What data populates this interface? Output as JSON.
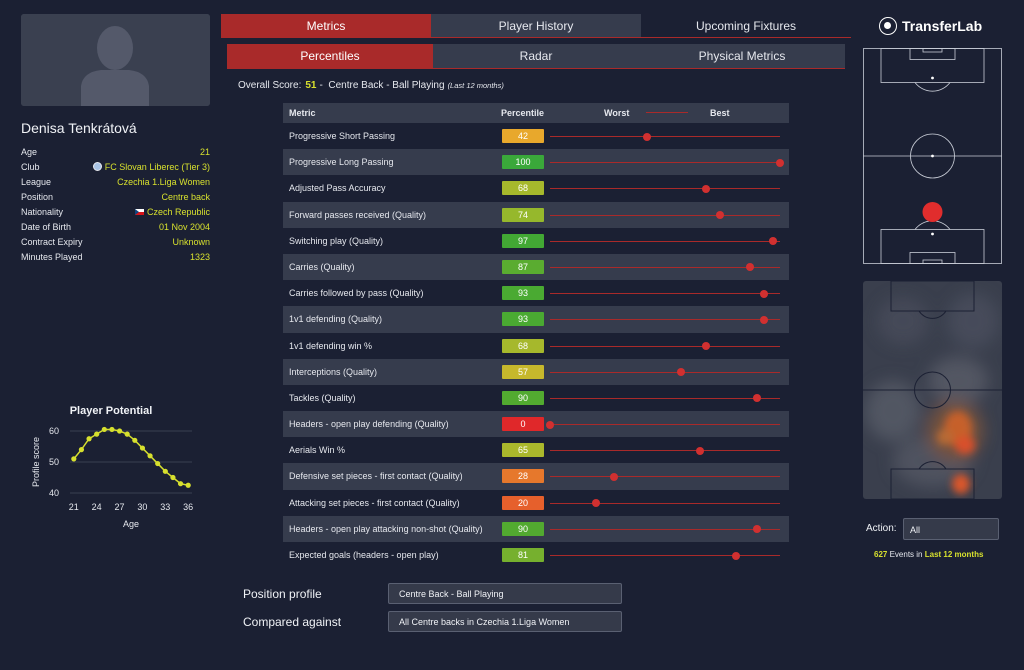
{
  "player": {
    "name": "Denisa Tenkrátová",
    "info": [
      {
        "label": "Age",
        "value": "21"
      },
      {
        "label": "Club",
        "value": "FC Slovan Liberec (Tier 3)",
        "icon": "club-badge-icon"
      },
      {
        "label": "League",
        "value": "Czechia 1.Liga Women"
      },
      {
        "label": "Position",
        "value": "Centre back"
      },
      {
        "label": "Nationality",
        "value": "Czech Republic",
        "icon": "czech-flag-icon"
      },
      {
        "label": "Date of Birth",
        "value": "01 Nov 2004"
      },
      {
        "label": "Contract Expiry",
        "value": "Unknown"
      },
      {
        "label": "Minutes Played",
        "value": "1323"
      }
    ]
  },
  "tabs": {
    "main": [
      {
        "label": "Metrics",
        "active": true
      },
      {
        "label": "Player History",
        "active": false
      },
      {
        "label": "Upcoming Fixtures",
        "active": false
      }
    ],
    "sub": [
      {
        "label": "Percentiles",
        "active": true
      },
      {
        "label": "Radar",
        "active": false
      },
      {
        "label": "Physical Metrics",
        "active": false
      }
    ]
  },
  "overall": {
    "label": "Overall Score:",
    "score": "51",
    "separator": "-",
    "profile": "Centre Back - Ball Playing",
    "period": "(Last 12 months)"
  },
  "table": {
    "headers": {
      "metric": "Metric",
      "percentile": "Percentile",
      "worst": "Worst",
      "best": "Best"
    },
    "rows": [
      {
        "metric": "Progressive Short Passing",
        "percentile": 42,
        "color": "#e8a82c"
      },
      {
        "metric": "Progressive Long Passing",
        "percentile": 100,
        "color": "#3aa83a"
      },
      {
        "metric": "Adjusted Pass Accuracy",
        "percentile": 68,
        "color": "#a6b82c"
      },
      {
        "metric": "Forward passes received (Quality)",
        "percentile": 74,
        "color": "#96b82c"
      },
      {
        "metric": "Switching play (Quality)",
        "percentile": 97,
        "color": "#42a834"
      },
      {
        "metric": "Carries (Quality)",
        "percentile": 87,
        "color": "#5aac30"
      },
      {
        "metric": "Carries followed by pass (Quality)",
        "percentile": 93,
        "color": "#4aaa32"
      },
      {
        "metric": "1v1 defending (Quality)",
        "percentile": 93,
        "color": "#4aaa32"
      },
      {
        "metric": "1v1 defending win %",
        "percentile": 68,
        "color": "#a6b82c"
      },
      {
        "metric": "Interceptions (Quality)",
        "percentile": 57,
        "color": "#c6b82c"
      },
      {
        "metric": "Tackles (Quality)",
        "percentile": 90,
        "color": "#52aa30"
      },
      {
        "metric": "Headers - open play defending (Quality)",
        "percentile": 0,
        "color": "#e0282a"
      },
      {
        "metric": "Aerials Win %",
        "percentile": 65,
        "color": "#aab82c"
      },
      {
        "metric": "Defensive set pieces - first contact (Quality)",
        "percentile": 28,
        "color": "#e6782c"
      },
      {
        "metric": "Attacking set pieces - first contact (Quality)",
        "percentile": 20,
        "color": "#e6602c"
      },
      {
        "metric": "Headers - open play attacking non-shot (Quality)",
        "percentile": 90,
        "color": "#52aa30"
      },
      {
        "metric": "Expected goals (headers - open play)",
        "percentile": 81,
        "color": "#76b02e"
      }
    ]
  },
  "selectors": {
    "position_profile_label": "Position profile",
    "position_profile_value": "Centre Back - Ball Playing",
    "compared_against_label": "Compared against",
    "compared_against_value": "All Centre backs in Czechia 1.Liga Women"
  },
  "brand": {
    "name": "TransferLab",
    "icon": "transferlab-logo-icon"
  },
  "action": {
    "label": "Action:",
    "value": "All"
  },
  "events": {
    "count": "627",
    "text": "Events in",
    "period": "Last 12 months"
  },
  "chart_data": {
    "type": "line",
    "title": "Player Potential",
    "xlabel": "Age",
    "ylabel": "Profile score",
    "xlim": [
      20.5,
      36.5
    ],
    "ylim": [
      40,
      60
    ],
    "xticks": [
      21,
      24,
      27,
      30,
      33,
      36
    ],
    "yticks": [
      40,
      50,
      60
    ],
    "grid": true,
    "x": [
      21,
      22,
      23,
      24,
      25,
      26,
      27,
      28,
      29,
      30,
      31,
      32,
      33,
      34,
      35,
      36
    ],
    "y": [
      51,
      54,
      57.5,
      59,
      60.5,
      60.5,
      60,
      59,
      57,
      54.5,
      52,
      49.5,
      47,
      45,
      43,
      42.5
    ],
    "series_color": "#d7e02e"
  }
}
